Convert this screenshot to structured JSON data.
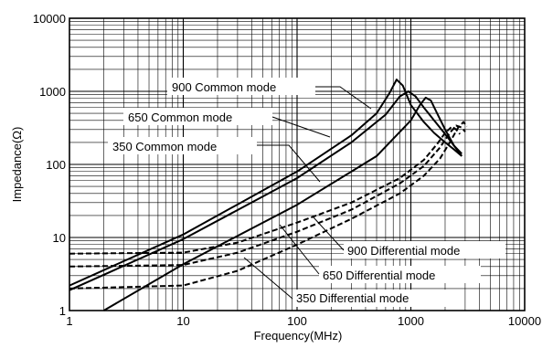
{
  "chart_data": {
    "type": "line",
    "xscale": "log",
    "yscale": "log",
    "xlim": [
      1,
      10000
    ],
    "ylim": [
      1,
      10000
    ],
    "grid": true,
    "xlabel": "Frequency(MHz)",
    "ylabel": "Impedance(Ω)",
    "x_ticks": [
      {
        "value": 1,
        "label": "1"
      },
      {
        "value": 10,
        "label": "10"
      },
      {
        "value": 100,
        "label": "100"
      },
      {
        "value": 1000,
        "label": "1000"
      },
      {
        "value": 10000,
        "label": "10000"
      }
    ],
    "y_ticks": [
      {
        "value": 1,
        "label": "1"
      },
      {
        "value": 10,
        "label": "10"
      },
      {
        "value": 100,
        "label": "100"
      },
      {
        "value": 1000,
        "label": "1000"
      },
      {
        "value": 10000,
        "label": "10000"
      }
    ],
    "series": [
      {
        "name": "900 Common mode",
        "style": "solid",
        "x": [
          1,
          10,
          100,
          300,
          500,
          650,
          750,
          850,
          1000,
          1300,
          1600,
          2000,
          2400,
          2800
        ],
        "y": [
          2.2,
          11,
          80,
          250,
          500,
          950,
          1450,
          1200,
          650,
          380,
          270,
          200,
          160,
          130
        ]
      },
      {
        "name": "650 Common mode",
        "style": "solid",
        "x": [
          1,
          10,
          100,
          300,
          600,
          800,
          950,
          1100,
          1300,
          1600,
          2000,
          2400,
          2800
        ],
        "y": [
          1.9,
          9.5,
          65,
          200,
          480,
          850,
          1000,
          850,
          600,
          400,
          260,
          180,
          130
        ]
      },
      {
        "name": "350 Common mode",
        "style": "solid",
        "x": [
          2,
          10,
          100,
          500,
          1000,
          1200,
          1350,
          1500,
          1700,
          2000,
          2400,
          2800
        ],
        "y": [
          1,
          4.3,
          28,
          130,
          400,
          650,
          820,
          750,
          500,
          300,
          180,
          140
        ]
      },
      {
        "name": "900 Differential mode",
        "style": "dashed",
        "x": [
          1,
          10,
          30,
          100,
          300,
          800,
          1300,
          1700,
          2000,
          2300,
          2500,
          2700
        ],
        "y": [
          6,
          6.2,
          8.5,
          16,
          30,
          65,
          115,
          190,
          270,
          330,
          300,
          260
        ]
      },
      {
        "name": "650 Differential mode",
        "style": "dashed",
        "x": [
          1,
          10,
          30,
          100,
          300,
          800,
          1300,
          1800,
          2200,
          2500,
          2800,
          3000
        ],
        "y": [
          4,
          4.2,
          6.2,
          12,
          24,
          55,
          95,
          170,
          270,
          340,
          320,
          280
        ]
      },
      {
        "name": "350 Differential mode",
        "style": "dashed",
        "x": [
          1,
          10,
          30,
          100,
          300,
          800,
          1300,
          1800,
          2200,
          2600,
          2900,
          3100
        ],
        "y": [
          2,
          2.2,
          3.5,
          8,
          18,
          40,
          70,
          120,
          200,
          320,
          380,
          330
        ]
      }
    ]
  }
}
